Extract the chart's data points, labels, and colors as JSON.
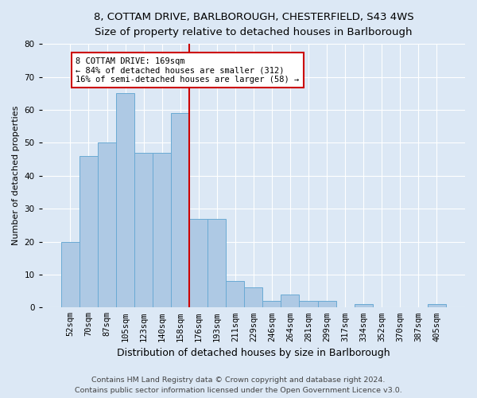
{
  "title1": "8, COTTAM DRIVE, BARLBOROUGH, CHESTERFIELD, S43 4WS",
  "title2": "Size of property relative to detached houses in Barlborough",
  "xlabel": "Distribution of detached houses by size in Barlborough",
  "ylabel": "Number of detached properties",
  "categories": [
    "52sqm",
    "70sqm",
    "87sqm",
    "105sqm",
    "123sqm",
    "140sqm",
    "158sqm",
    "176sqm",
    "193sqm",
    "211sqm",
    "229sqm",
    "246sqm",
    "264sqm",
    "281sqm",
    "299sqm",
    "317sqm",
    "334sqm",
    "352sqm",
    "370sqm",
    "387sqm",
    "405sqm"
  ],
  "values": [
    20,
    46,
    50,
    65,
    47,
    47,
    59,
    27,
    27,
    8,
    6,
    2,
    4,
    2,
    2,
    0,
    1,
    0,
    0,
    0,
    1
  ],
  "bar_color": "#aec9e4",
  "bar_edge_color": "#6aaad4",
  "ref_line_x": 6.5,
  "annotation_text": "8 COTTAM DRIVE: 169sqm\n← 84% of detached houses are smaller (312)\n16% of semi-detached houses are larger (58) →",
  "annotation_box_color": "#ffffff",
  "annotation_box_edge_color": "#cc0000",
  "vline_color": "#cc0000",
  "background_color": "#dce8f5",
  "plot_bg_color": "#dce8f5",
  "ylim": [
    0,
    80
  ],
  "yticks": [
    0,
    10,
    20,
    30,
    40,
    50,
    60,
    70,
    80
  ],
  "footer1": "Contains HM Land Registry data © Crown copyright and database right 2024.",
  "footer2": "Contains public sector information licensed under the Open Government Licence v3.0.",
  "title_fontsize": 9.5,
  "subtitle_fontsize": 9,
  "xlabel_fontsize": 9,
  "ylabel_fontsize": 8,
  "tick_fontsize": 7.5,
  "footer_fontsize": 6.8,
  "annot_fontsize": 7.5
}
